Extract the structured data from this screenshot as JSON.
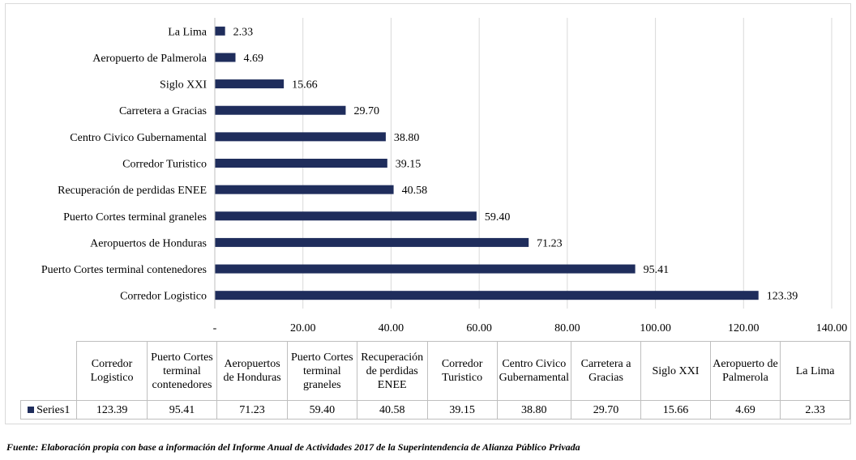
{
  "chart_data": {
    "type": "bar",
    "orientation": "horizontal",
    "categories": [
      "Corredor Logistico",
      "Puerto Cortes terminal contenedores",
      "Aeropuertos de Honduras",
      "Puerto Cortes terminal graneles",
      "Recuperación de perdidas ENEE",
      "Corredor Turistico",
      "Centro Civico Gubernamental",
      "Carretera a Gracias",
      "Siglo XXI",
      "Aeropuerto de Palmerola",
      "La Lima"
    ],
    "values": [
      123.39,
      95.41,
      71.23,
      59.4,
      40.58,
      39.15,
      38.8,
      29.7,
      15.66,
      4.69,
      2.33
    ],
    "value_labels": [
      "123.39",
      "95.41",
      "71.23",
      "59.40",
      "40.58",
      "39.15",
      "38.80",
      "29.70",
      "15.66",
      "4.69",
      "2.33"
    ],
    "series": [
      {
        "name": "Series1",
        "values": [
          123.39,
          95.41,
          71.23,
          59.4,
          40.58,
          39.15,
          38.8,
          29.7,
          15.66,
          4.69,
          2.33
        ]
      }
    ],
    "xlim": [
      0,
      140
    ],
    "x_ticks": [
      "-",
      "20.00",
      "40.00",
      "60.00",
      "80.00",
      "100.00",
      "120.00",
      "140.00"
    ],
    "grid": "vertical",
    "color": "#1f2d5c",
    "data_table": {
      "headers": [
        "Corredor Logistico",
        "Puerto Cortes terminal contenedores",
        "Aeropuertos de Honduras",
        "Puerto Cortes terminal graneles",
        "Recuperación de perdidas ENEE",
        "Corredor Turistico",
        "Centro Civico Gubernamental",
        "Carretera a Gracias",
        "Siglo XXI",
        "Aeropuerto de Palmerola",
        "La Lima"
      ],
      "series_label": "Series1",
      "values": [
        "123.39",
        "95.41",
        "71.23",
        "59.40",
        "40.58",
        "39.15",
        "38.80",
        "29.70",
        "15.66",
        "4.69",
        "2.33"
      ]
    }
  },
  "source_note": "Fuente: Elaboración propia con base a información del Informe Anual de Actividades 2017 de la Superintendencia de Alianza Público Privada"
}
